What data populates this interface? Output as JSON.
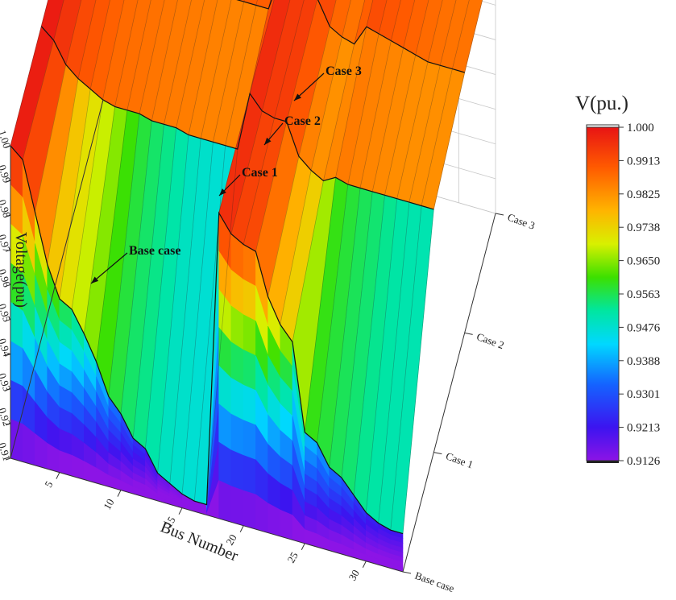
{
  "chart_data": {
    "type": "surface",
    "xlabel": "Bus Number",
    "ylabel": "Voltage(pu)",
    "zlim": [
      0.91,
      1.0
    ],
    "x_ticks": [
      "5",
      "10",
      "15",
      "20",
      "25",
      "30"
    ],
    "z_ticks": [
      "0.91",
      "0.92",
      "0.93",
      "0.94",
      "0.95",
      "0.96",
      "0.97",
      "0.98",
      "0.99",
      "1.00"
    ],
    "cases": [
      "Base case",
      "Case 1",
      "Case 2",
      "Case 3"
    ],
    "grid": true,
    "x": [
      1,
      2,
      3,
      4,
      5,
      6,
      7,
      8,
      9,
      10,
      11,
      12,
      13,
      14,
      15,
      16,
      17,
      18,
      19,
      20,
      21,
      22,
      23,
      24,
      25,
      26,
      27,
      28,
      29,
      30,
      31,
      32,
      33
    ],
    "series": [
      {
        "name": "Base case",
        "values": [
          1.0,
          0.997,
          0.983,
          0.969,
          0.96,
          0.958,
          0.952,
          0.945,
          0.936,
          0.932,
          0.926,
          0.924,
          0.918,
          0.916,
          0.914,
          0.913,
          0.913,
          0.998,
          0.993,
          0.991,
          0.99,
          0.978,
          0.971,
          0.967,
          0.942,
          0.94,
          0.934,
          0.932,
          0.928,
          0.924,
          0.922,
          0.921,
          0.921
        ]
      },
      {
        "name": "Case 1",
        "values": [
          1.0,
          0.997,
          0.991,
          0.988,
          0.986,
          0.984,
          0.983,
          0.983,
          0.983,
          0.982,
          0.982,
          0.982,
          0.981,
          0.981,
          0.981,
          0.981,
          0.981,
          0.998,
          0.994,
          0.993,
          0.993,
          0.984,
          0.981,
          0.979,
          0.981,
          0.98,
          0.98,
          0.98,
          0.98,
          0.98,
          0.98,
          0.98,
          0.98
        ]
      },
      {
        "name": "Case 2",
        "values": [
          1.0,
          0.998,
          0.994,
          0.993,
          0.992,
          0.991,
          0.99,
          0.99,
          0.989,
          0.989,
          0.988,
          0.988,
          0.988,
          0.987,
          0.987,
          0.987,
          0.987,
          0.998,
          0.995,
          0.994,
          0.994,
          0.987,
          0.985,
          0.984,
          0.99,
          0.989,
          0.988,
          0.987,
          0.986,
          0.985,
          0.985,
          0.985,
          0.985
        ]
      },
      {
        "name": "Case 3",
        "values": [
          1.0,
          0.998,
          0.996,
          0.995,
          0.994,
          0.994,
          0.993,
          0.993,
          0.992,
          0.992,
          0.991,
          0.991,
          0.991,
          0.99,
          0.99,
          0.99,
          0.99,
          0.998,
          0.996,
          0.995,
          0.995,
          0.99,
          0.988,
          0.987,
          0.993,
          0.992,
          0.991,
          0.99,
          0.989,
          0.988,
          0.987,
          0.987,
          0.987
        ]
      }
    ],
    "colorbar": {
      "title": "V(pu.)",
      "labels": [
        "1.000",
        "0.9913",
        "0.9825",
        "0.9738",
        "0.9650",
        "0.9563",
        "0.9476",
        "0.9388",
        "0.9301",
        "0.9213",
        "0.9126"
      ],
      "range": [
        0.9126,
        1.0
      ]
    },
    "annotations": [
      "Case 3",
      "Case 2",
      "Case 1",
      "Base case"
    ]
  }
}
